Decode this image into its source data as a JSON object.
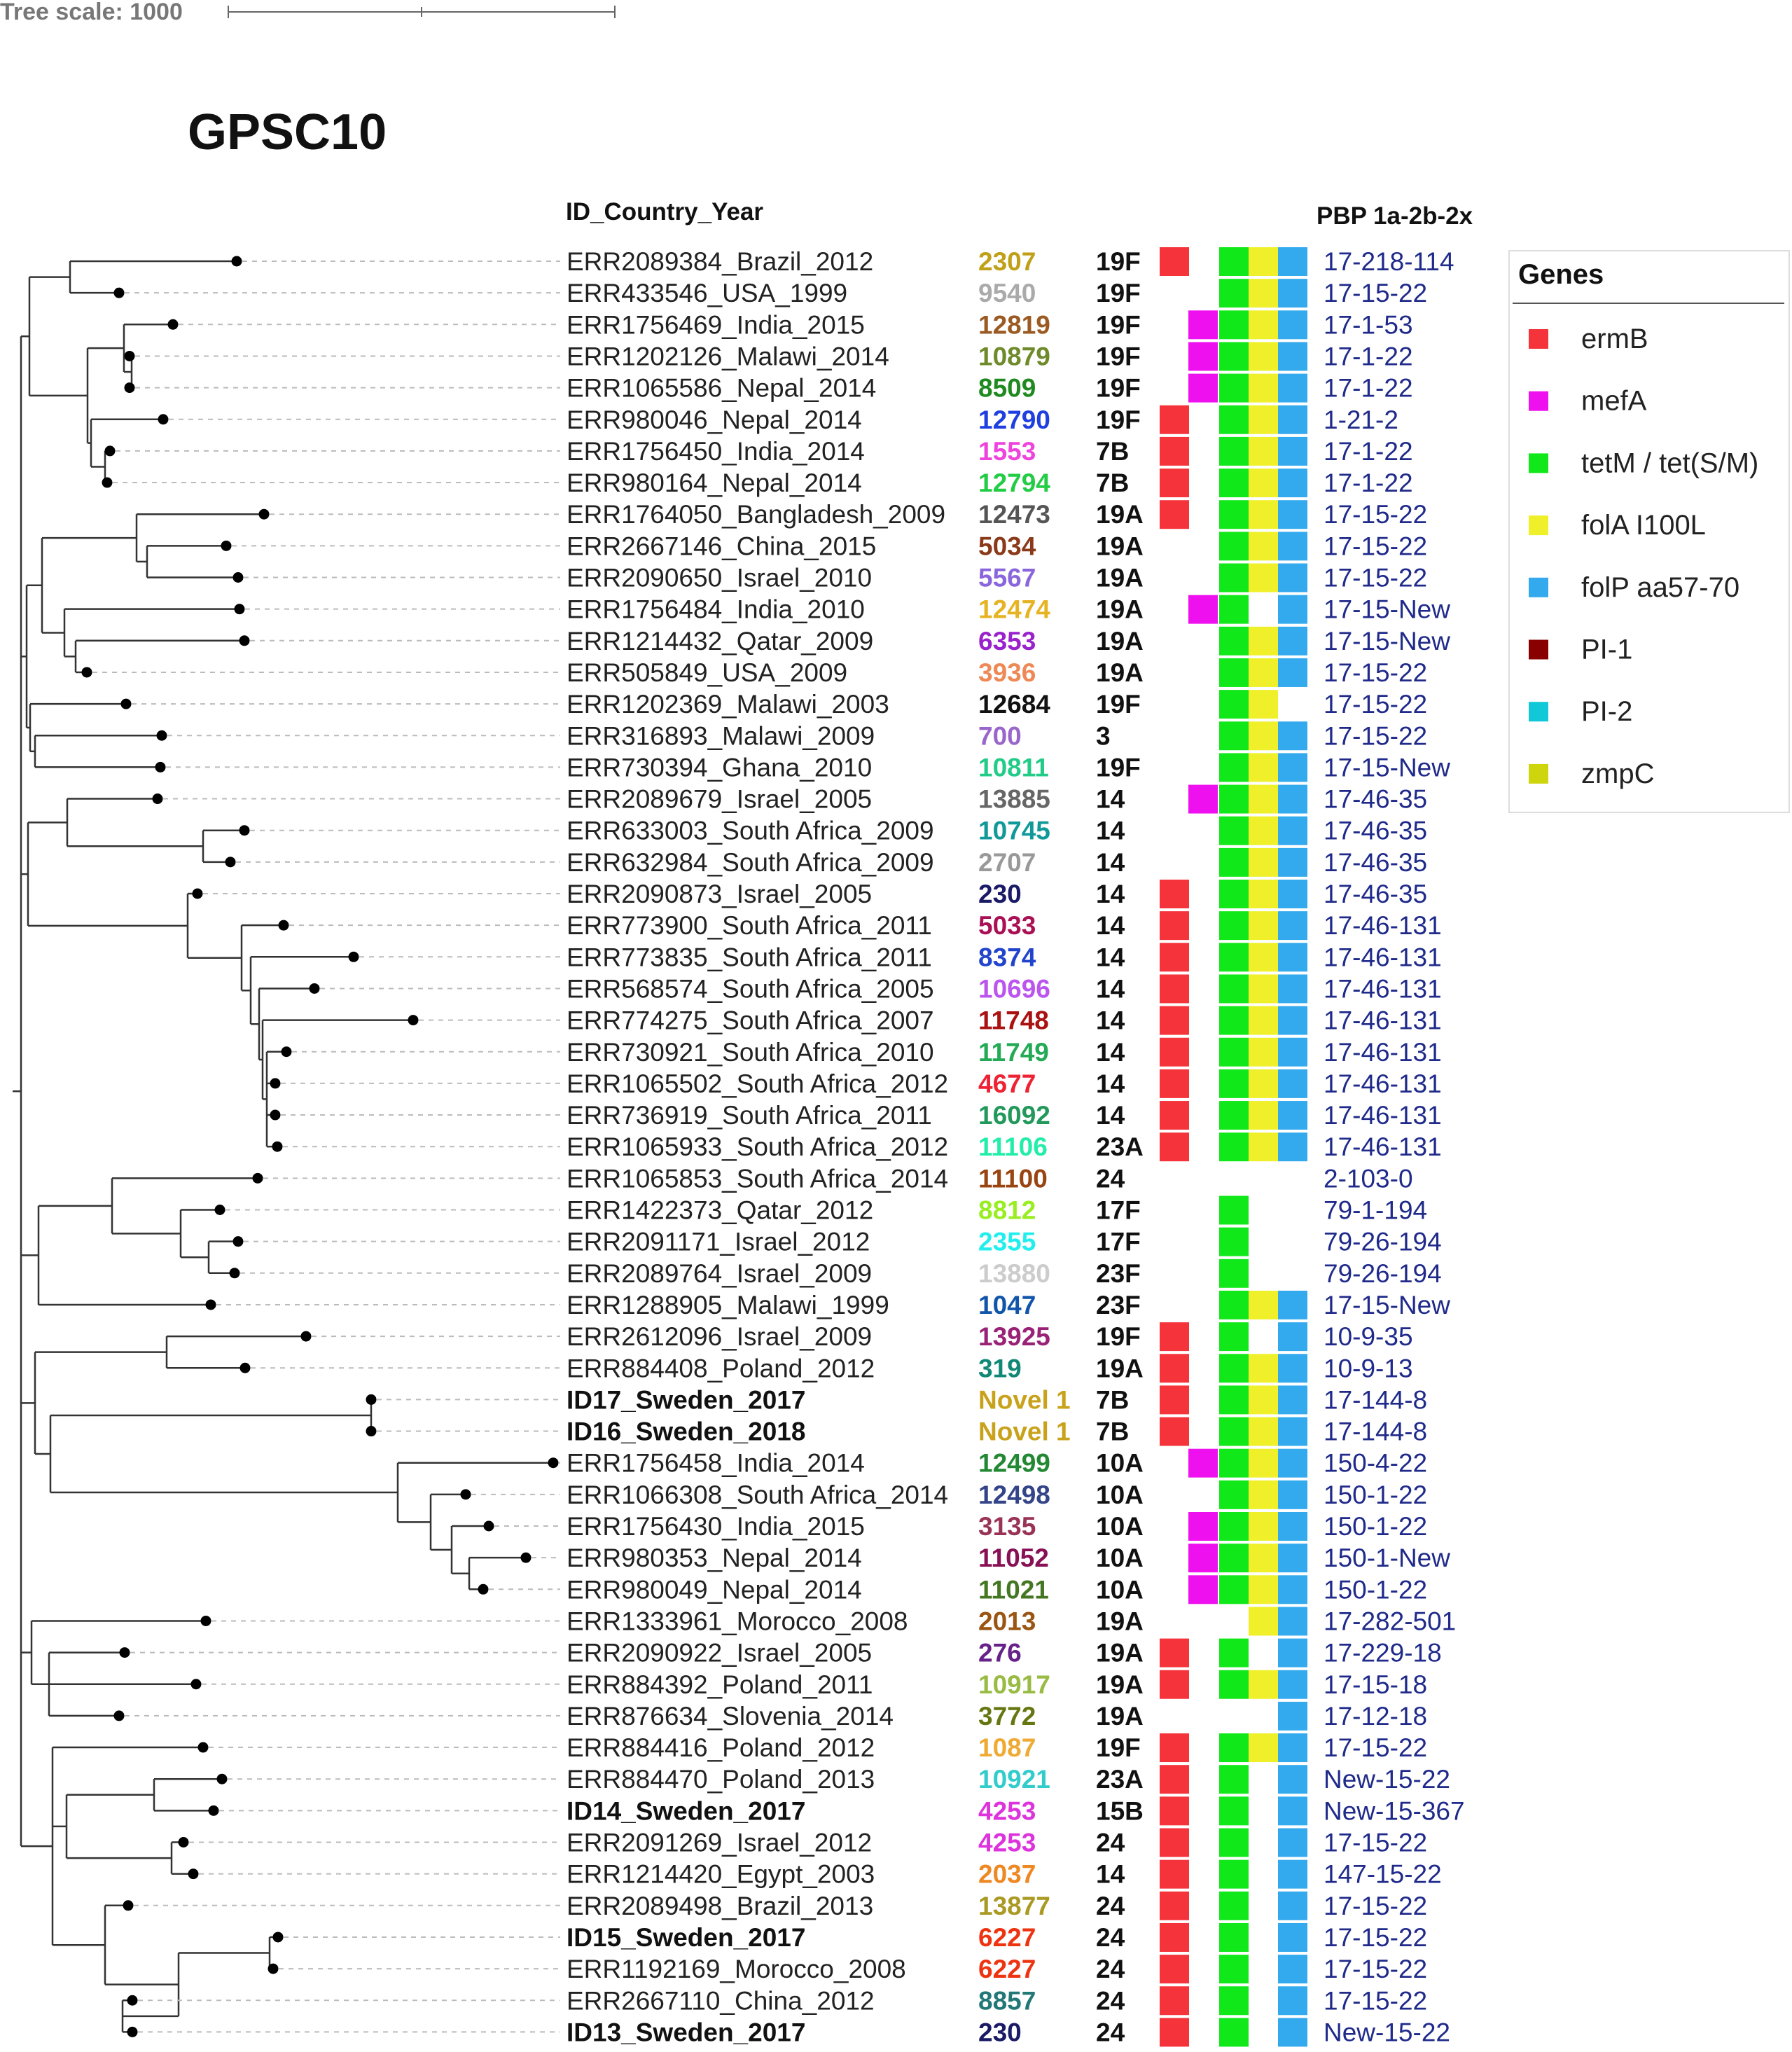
{
  "tree_scale": {
    "label": "Tree scale: 1000"
  },
  "title": "GPSC10",
  "headers": {
    "id_country_year": "ID_Country_Year",
    "pbp": "PBP 1a-2b-2x"
  },
  "legend": {
    "title": "Genes",
    "items": [
      {
        "key": "ermB",
        "label": "ermB",
        "color": "#f5333a"
      },
      {
        "key": "mefA",
        "label": "mefA",
        "color": "#ee10ee"
      },
      {
        "key": "tetM",
        "label": "tetM / tet(S/M)",
        "color": "#11e81a"
      },
      {
        "key": "folA",
        "label": "folA I100L",
        "color": "#f0f02a"
      },
      {
        "key": "folP",
        "label": "folP aa57-70",
        "color": "#33aaee"
      },
      {
        "key": "PI1",
        "label": "PI-1",
        "color": "#880000"
      },
      {
        "key": "PI2",
        "label": "PI-2",
        "color": "#10c8d8"
      },
      {
        "key": "zmpC",
        "label": "zmpC",
        "color": "#cfd50c"
      }
    ]
  },
  "colors": {
    "line": "#333333",
    "dot": "#000000",
    "pbp_text": "#1f2a8a",
    "label_text": "#222222",
    "dash": "#bbbbbb"
  },
  "rows": [
    {
      "id": "ERR2089384_Brazil_2012",
      "bold": false,
      "st": "2307",
      "st_color": "#bfa018",
      "serotype": "19F",
      "genes": [
        "ermB",
        "tetM",
        "folA",
        "folP"
      ],
      "pbp": "17-218-114"
    },
    {
      "id": "ERR433546_USA_1999",
      "bold": false,
      "st": "9540",
      "st_color": "#aaaaaa",
      "serotype": "19F",
      "genes": [
        "tetM",
        "folA",
        "folP"
      ],
      "pbp": "17-15-22"
    },
    {
      "id": "ERR1756469_India_2015",
      "bold": false,
      "st": "12819",
      "st_color": "#9a5a22",
      "serotype": "19F",
      "genes": [
        "mefA",
        "tetM",
        "folA",
        "folP"
      ],
      "pbp": "17-1-53"
    },
    {
      "id": "ERR1202126_Malawi_2014",
      "bold": false,
      "st": "10879",
      "st_color": "#6e8a2a",
      "serotype": "19F",
      "genes": [
        "mefA",
        "tetM",
        "folA",
        "folP"
      ],
      "pbp": "17-1-22"
    },
    {
      "id": "ERR1065586_Nepal_2014",
      "bold": false,
      "st": "8509",
      "st_color": "#1f8a1f",
      "serotype": "19F",
      "genes": [
        "mefA",
        "tetM",
        "folA",
        "folP"
      ],
      "pbp": "17-1-22"
    },
    {
      "id": "ERR980046_Nepal_2014",
      "bold": false,
      "st": "12790",
      "st_color": "#1f3fe0",
      "serotype": "19F",
      "genes": [
        "ermB",
        "tetM",
        "folA",
        "folP"
      ],
      "pbp": "1-21-2"
    },
    {
      "id": "ERR1756450_India_2014",
      "bold": false,
      "st": "1553",
      "st_color": "#ee44dd",
      "serotype": "7B",
      "genes": [
        "ermB",
        "tetM",
        "folA",
        "folP"
      ],
      "pbp": "17-1-22"
    },
    {
      "id": "ERR980164_Nepal_2014",
      "bold": false,
      "st": "12794",
      "st_color": "#22cc44",
      "serotype": "7B",
      "genes": [
        "ermB",
        "tetM",
        "folA",
        "folP"
      ],
      "pbp": "17-1-22"
    },
    {
      "id": "ERR1764050_Bangladesh_2009",
      "bold": false,
      "st": "12473",
      "st_color": "#555555",
      "serotype": "19A",
      "genes": [
        "ermB",
        "tetM",
        "folA",
        "folP"
      ],
      "pbp": "17-15-22"
    },
    {
      "id": "ERR2667146_China_2015",
      "bold": false,
      "st": "5034",
      "st_color": "#8a3a1a",
      "serotype": "19A",
      "genes": [
        "tetM",
        "folA",
        "folP"
      ],
      "pbp": "17-15-22"
    },
    {
      "id": "ERR2090650_Israel_2010",
      "bold": false,
      "st": "5567",
      "st_color": "#8a66dd",
      "serotype": "19A",
      "genes": [
        "tetM",
        "folA",
        "folP"
      ],
      "pbp": "17-15-22"
    },
    {
      "id": "ERR1756484_India_2010",
      "bold": false,
      "st": "12474",
      "st_color": "#e6b422",
      "serotype": "19A",
      "genes": [
        "mefA",
        "tetM",
        "folP"
      ],
      "pbp": "17-15-New"
    },
    {
      "id": "ERR1214432_Qatar_2009",
      "bold": false,
      "st": "6353",
      "st_color": "#9922cc",
      "serotype": "19A",
      "genes": [
        "tetM",
        "folA",
        "folP"
      ],
      "pbp": "17-15-New"
    },
    {
      "id": "ERR505849_USA_2009",
      "bold": false,
      "st": "3936",
      "st_color": "#ee8855",
      "serotype": "19A",
      "genes": [
        "tetM",
        "folA",
        "folP"
      ],
      "pbp": "17-15-22"
    },
    {
      "id": "ERR1202369_Malawi_2003",
      "bold": false,
      "st": "12684",
      "st_color": "#111111",
      "serotype": "19F",
      "genes": [
        "tetM",
        "folA"
      ],
      "pbp": "17-15-22"
    },
    {
      "id": "ERR316893_Malawi_2009",
      "bold": false,
      "st": "700",
      "st_color": "#9966cc",
      "serotype": "3",
      "genes": [
        "tetM",
        "folA",
        "folP"
      ],
      "pbp": "17-15-22"
    },
    {
      "id": "ERR730394_Ghana_2010",
      "bold": false,
      "st": "10811",
      "st_color": "#22cc88",
      "serotype": "19F",
      "genes": [
        "tetM",
        "folA",
        "folP"
      ],
      "pbp": "17-15-New"
    },
    {
      "id": "ERR2089679_Israel_2005",
      "bold": false,
      "st": "13885",
      "st_color": "#666666",
      "serotype": "14",
      "genes": [
        "mefA",
        "tetM",
        "folA",
        "folP"
      ],
      "pbp": "17-46-35"
    },
    {
      "id": "ERR633003_South Africa_2009",
      "bold": false,
      "st": "10745",
      "st_color": "#119999",
      "serotype": "14",
      "genes": [
        "tetM",
        "folA",
        "folP"
      ],
      "pbp": "17-46-35"
    },
    {
      "id": "ERR632984_South Africa_2009",
      "bold": false,
      "st": "2707",
      "st_color": "#999999",
      "serotype": "14",
      "genes": [
        "tetM",
        "folA",
        "folP"
      ],
      "pbp": "17-46-35"
    },
    {
      "id": "ERR2090873_Israel_2005",
      "bold": false,
      "st": "230",
      "st_color": "#1a1a66",
      "serotype": "14",
      "genes": [
        "ermB",
        "tetM",
        "folA",
        "folP"
      ],
      "pbp": "17-46-35"
    },
    {
      "id": "ERR773900_South Africa_2011",
      "bold": false,
      "st": "5033",
      "st_color": "#aa1155",
      "serotype": "14",
      "genes": [
        "ermB",
        "tetM",
        "folA",
        "folP"
      ],
      "pbp": "17-46-131"
    },
    {
      "id": "ERR773835_South Africa_2011",
      "bold": false,
      "st": "8374",
      "st_color": "#2244cc",
      "serotype": "14",
      "genes": [
        "ermB",
        "tetM",
        "folA",
        "folP"
      ],
      "pbp": "17-46-131"
    },
    {
      "id": "ERR568574_South Africa_2005",
      "bold": false,
      "st": "10696",
      "st_color": "#bb55ee",
      "serotype": "14",
      "genes": [
        "ermB",
        "tetM",
        "folA",
        "folP"
      ],
      "pbp": "17-46-131"
    },
    {
      "id": "ERR774275_South Africa_2007",
      "bold": false,
      "st": "11748",
      "st_color": "#aa1111",
      "serotype": "14",
      "genes": [
        "ermB",
        "tetM",
        "folA",
        "folP"
      ],
      "pbp": "17-46-131"
    },
    {
      "id": "ERR730921_South Africa_2010",
      "bold": false,
      "st": "11749",
      "st_color": "#22aa55",
      "serotype": "14",
      "genes": [
        "ermB",
        "tetM",
        "folA",
        "folP"
      ],
      "pbp": "17-46-131"
    },
    {
      "id": "ERR1065502_South Africa_2012",
      "bold": false,
      "st": "4677",
      "st_color": "#ee2233",
      "serotype": "14",
      "genes": [
        "ermB",
        "tetM",
        "folA",
        "folP"
      ],
      "pbp": "17-46-131"
    },
    {
      "id": "ERR736919_South Africa_2011",
      "bold": false,
      "st": "16092",
      "st_color": "#22995a",
      "serotype": "14",
      "genes": [
        "ermB",
        "tetM",
        "folA",
        "folP"
      ],
      "pbp": "17-46-131"
    },
    {
      "id": "ERR1065933_South Africa_2012",
      "bold": false,
      "st": "11106",
      "st_color": "#22eeaa",
      "serotype": "23A",
      "genes": [
        "ermB",
        "tetM",
        "folA",
        "folP"
      ],
      "pbp": "17-46-131"
    },
    {
      "id": "ERR1065853_South Africa_2014",
      "bold": false,
      "st": "11100",
      "st_color": "#994411",
      "serotype": "24",
      "genes": [],
      "pbp": "2-103-0"
    },
    {
      "id": "ERR1422373_Qatar_2012",
      "bold": false,
      "st": "8812",
      "st_color": "#99ee22",
      "serotype": "17F",
      "genes": [
        "tetM"
      ],
      "pbp": "79-1-194"
    },
    {
      "id": "ERR2091171_Israel_2012",
      "bold": false,
      "st": "2355",
      "st_color": "#22eeee",
      "serotype": "17F",
      "genes": [
        "tetM"
      ],
      "pbp": "79-26-194"
    },
    {
      "id": "ERR2089764_Israel_2009",
      "bold": false,
      "st": "13880",
      "st_color": "#cccccc",
      "serotype": "23F",
      "genes": [
        "tetM"
      ],
      "pbp": "79-26-194"
    },
    {
      "id": "ERR1288905_Malawi_1999",
      "bold": false,
      "st": "1047",
      "st_color": "#1155aa",
      "serotype": "23F",
      "genes": [
        "tetM",
        "folA",
        "folP"
      ],
      "pbp": "17-15-New"
    },
    {
      "id": "ERR2612096_Israel_2009",
      "bold": false,
      "st": "13925",
      "st_color": "#992277",
      "serotype": "19F",
      "genes": [
        "ermB",
        "tetM",
        "folP"
      ],
      "pbp": "10-9-35"
    },
    {
      "id": "ERR884408_Poland_2012",
      "bold": false,
      "st": "319",
      "st_color": "#118877",
      "serotype": "19A",
      "genes": [
        "ermB",
        "tetM",
        "folA",
        "folP"
      ],
      "pbp": "10-9-13"
    },
    {
      "id": "ID17_Sweden_2017",
      "bold": true,
      "st": "Novel 1",
      "st_color": "#c8a21a",
      "serotype": "7B",
      "genes": [
        "ermB",
        "tetM",
        "folA",
        "folP"
      ],
      "pbp": "17-144-8"
    },
    {
      "id": "ID16_Sweden_2018",
      "bold": true,
      "st": "Novel 1",
      "st_color": "#c8a21a",
      "serotype": "7B",
      "genes": [
        "ermB",
        "tetM",
        "folA",
        "folP"
      ],
      "pbp": "17-144-8"
    },
    {
      "id": "ERR1756458_India_2014",
      "bold": false,
      "st": "12499",
      "st_color": "#228833",
      "serotype": "10A",
      "genes": [
        "mefA",
        "tetM",
        "folA",
        "folP"
      ],
      "pbp": "150-4-22"
    },
    {
      "id": "ERR1066308_South Africa_2014",
      "bold": false,
      "st": "12498",
      "st_color": "#334488",
      "serotype": "10A",
      "genes": [
        "tetM",
        "folA",
        "folP"
      ],
      "pbp": "150-1-22"
    },
    {
      "id": "ERR1756430_India_2015",
      "bold": false,
      "st": "3135",
      "st_color": "#993355",
      "serotype": "10A",
      "genes": [
        "mefA",
        "tetM",
        "folA",
        "folP"
      ],
      "pbp": "150-1-22"
    },
    {
      "id": "ERR980353_Nepal_2014",
      "bold": false,
      "st": "11052",
      "st_color": "#881155",
      "serotype": "10A",
      "genes": [
        "mefA",
        "tetM",
        "folA",
        "folP"
      ],
      "pbp": "150-1-New"
    },
    {
      "id": "ERR980049_Nepal_2014",
      "bold": false,
      "st": "11021",
      "st_color": "#447722",
      "serotype": "10A",
      "genes": [
        "mefA",
        "tetM",
        "folA",
        "folP"
      ],
      "pbp": "150-1-22"
    },
    {
      "id": "ERR1333961_Morocco_2008",
      "bold": false,
      "st": "2013",
      "st_color": "#995511",
      "serotype": "19A",
      "genes": [
        "folA",
        "folP"
      ],
      "pbp": "17-282-501"
    },
    {
      "id": "ERR2090922_Israel_2005",
      "bold": false,
      "st": "276",
      "st_color": "#662288",
      "serotype": "19A",
      "genes": [
        "ermB",
        "tetM",
        "folP"
      ],
      "pbp": "17-229-18"
    },
    {
      "id": "ERR884392_Poland_2011",
      "bold": false,
      "st": "10917",
      "st_color": "#99bb44",
      "serotype": "19A",
      "genes": [
        "ermB",
        "tetM",
        "folA",
        "folP"
      ],
      "pbp": "17-15-18"
    },
    {
      "id": "ERR876634_Slovenia_2014",
      "bold": false,
      "st": "3772",
      "st_color": "#667711",
      "serotype": "19A",
      "genes": [
        "folP"
      ],
      "pbp": "17-12-18"
    },
    {
      "id": "ERR884416_Poland_2012",
      "bold": false,
      "st": "1087",
      "st_color": "#eeaa33",
      "serotype": "19F",
      "genes": [
        "ermB",
        "tetM",
        "folA",
        "folP"
      ],
      "pbp": "17-15-22"
    },
    {
      "id": "ERR884470_Poland_2013",
      "bold": false,
      "st": "10921",
      "st_color": "#33cccc",
      "serotype": "23A",
      "genes": [
        "ermB",
        "tetM",
        "folP"
      ],
      "pbp": "New-15-22"
    },
    {
      "id": "ID14_Sweden_2017",
      "bold": true,
      "st": "4253",
      "st_color": "#dd33dd",
      "serotype": "15B",
      "genes": [
        "ermB",
        "tetM",
        "folP"
      ],
      "pbp": "New-15-367"
    },
    {
      "id": "ERR2091269_Israel_2012",
      "bold": false,
      "st": "4253",
      "st_color": "#dd33dd",
      "serotype": "24",
      "genes": [
        "ermB",
        "tetM",
        "folP"
      ],
      "pbp": "17-15-22"
    },
    {
      "id": "ERR1214420_Egypt_2003",
      "bold": false,
      "st": "2037",
      "st_color": "#ee8822",
      "serotype": "14",
      "genes": [
        "ermB",
        "tetM",
        "folP"
      ],
      "pbp": "147-15-22"
    },
    {
      "id": "ERR2089498_Brazil_2013",
      "bold": false,
      "st": "13877",
      "st_color": "#aa9922",
      "serotype": "24",
      "genes": [
        "ermB",
        "tetM",
        "folP"
      ],
      "pbp": "17-15-22"
    },
    {
      "id": "ID15_Sweden_2017",
      "bold": true,
      "st": "6227",
      "st_color": "#ee3311",
      "serotype": "24",
      "genes": [
        "ermB",
        "tetM",
        "folP"
      ],
      "pbp": "17-15-22"
    },
    {
      "id": "ERR1192169_Morocco_2008",
      "bold": false,
      "st": "6227",
      "st_color": "#ee3311",
      "serotype": "24",
      "genes": [
        "ermB",
        "tetM",
        "folP"
      ],
      "pbp": "17-15-22"
    },
    {
      "id": "ERR2667110_China_2012",
      "bold": false,
      "st": "8857",
      "st_color": "#227777",
      "serotype": "24",
      "genes": [
        "ermB",
        "tetM",
        "folP"
      ],
      "pbp": "17-15-22"
    },
    {
      "id": "ID13_Sweden_2017",
      "bold": true,
      "st": "230",
      "st_color": "#1a1a66",
      "serotype": "24",
      "genes": [
        "ermB",
        "tetM",
        "folP"
      ],
      "pbp": "New-15-22"
    }
  ]
}
